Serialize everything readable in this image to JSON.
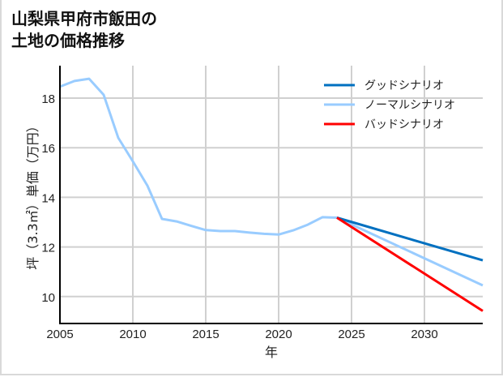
{
  "title": {
    "line1": "山梨県甲府市飯田の",
    "line2": "土地の価格推移"
  },
  "chart_data": {
    "type": "line",
    "title": "山梨県甲府市飯田の土地の価格推移",
    "xlabel": "年",
    "ylabel": "坪（3.3㎡）単価（万円）",
    "xlim": [
      2005,
      2034
    ],
    "ylim": [
      8.9,
      19.1
    ],
    "xticks": [
      2005,
      2010,
      2015,
      2020,
      2025,
      2030
    ],
    "yticks": [
      10,
      12,
      14,
      16,
      18
    ],
    "grid": true,
    "legend_position": "upper right",
    "series": [
      {
        "name": "グッドシナリオ",
        "color": "#0070c0",
        "x": [
          2024,
          2034
        ],
        "values": [
          13.18,
          11.46
        ]
      },
      {
        "name": "ノーマルシナリオ",
        "color": "#99ccff",
        "x": [
          2005,
          2006,
          2007,
          2008,
          2009,
          2010,
          2011,
          2012,
          2013,
          2014,
          2015,
          2016,
          2017,
          2018,
          2019,
          2020,
          2021,
          2022,
          2023,
          2024,
          2034
        ],
        "values": [
          18.46,
          18.69,
          18.78,
          18.13,
          16.4,
          15.45,
          14.47,
          13.13,
          13.03,
          12.85,
          12.68,
          12.64,
          12.64,
          12.58,
          12.53,
          12.5,
          12.67,
          12.9,
          13.2,
          13.18,
          10.45
        ]
      },
      {
        "name": "バッドシナリオ",
        "color": "#ff0000",
        "x": [
          2024,
          2034
        ],
        "values": [
          13.18,
          9.42
        ]
      }
    ]
  }
}
